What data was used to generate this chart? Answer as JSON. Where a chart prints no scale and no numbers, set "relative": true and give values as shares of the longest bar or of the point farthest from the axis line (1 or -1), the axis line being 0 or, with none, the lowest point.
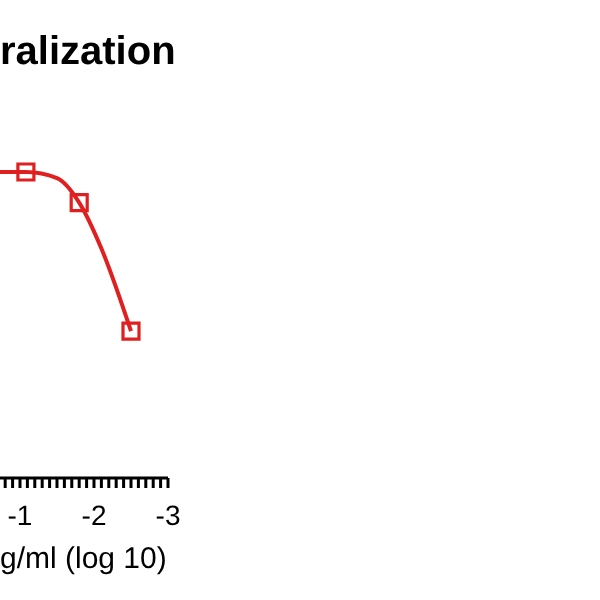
{
  "chart_data": {
    "type": "scatter",
    "title": "ralization",
    "xlabel": "g/ml (log 10)",
    "relative": true,
    "marker": "square",
    "grid": false,
    "xlim": [
      -0.73,
      -3
    ],
    "xticks": [
      {
        "value": -0.8,
        "label": null
      },
      {
        "value": -0.9,
        "label": null
      },
      -1,
      {
        "value": -1.1,
        "label": null
      },
      {
        "value": -1.2,
        "label": null
      },
      {
        "value": -1.3,
        "label": null
      },
      {
        "value": -1.4,
        "label": null
      },
      {
        "value": -1.5,
        "label": null
      },
      {
        "value": -1.6,
        "label": null
      },
      {
        "value": -1.7,
        "label": null
      },
      {
        "value": -1.8,
        "label": null
      },
      {
        "value": -1.9,
        "label": null
      },
      -2,
      {
        "value": -2.1,
        "label": null
      },
      {
        "value": -2.2,
        "label": null
      },
      {
        "value": -2.3,
        "label": null
      },
      {
        "value": -2.4,
        "label": null
      },
      {
        "value": -2.5,
        "label": null
      },
      {
        "value": -2.6,
        "label": null
      },
      {
        "value": -2.7,
        "label": null
      },
      {
        "value": -2.8,
        "label": null
      },
      {
        "value": -2.9,
        "label": null
      },
      -3
    ],
    "series": [
      {
        "type": "line",
        "color": "#e02020",
        "marker": "none",
        "x": [
          -0.73,
          -1.08,
          -1.5,
          -1.8,
          -2.1,
          -2.5
        ],
        "values": [
          1,
          1,
          0.98,
          0.9,
          0.75,
          0.48
        ]
      },
      {
        "color": "#e02020",
        "x": [
          -1.08,
          -1.8,
          -2.5
        ],
        "values": [
          1,
          0.9,
          0.48
        ]
      }
    ]
  }
}
